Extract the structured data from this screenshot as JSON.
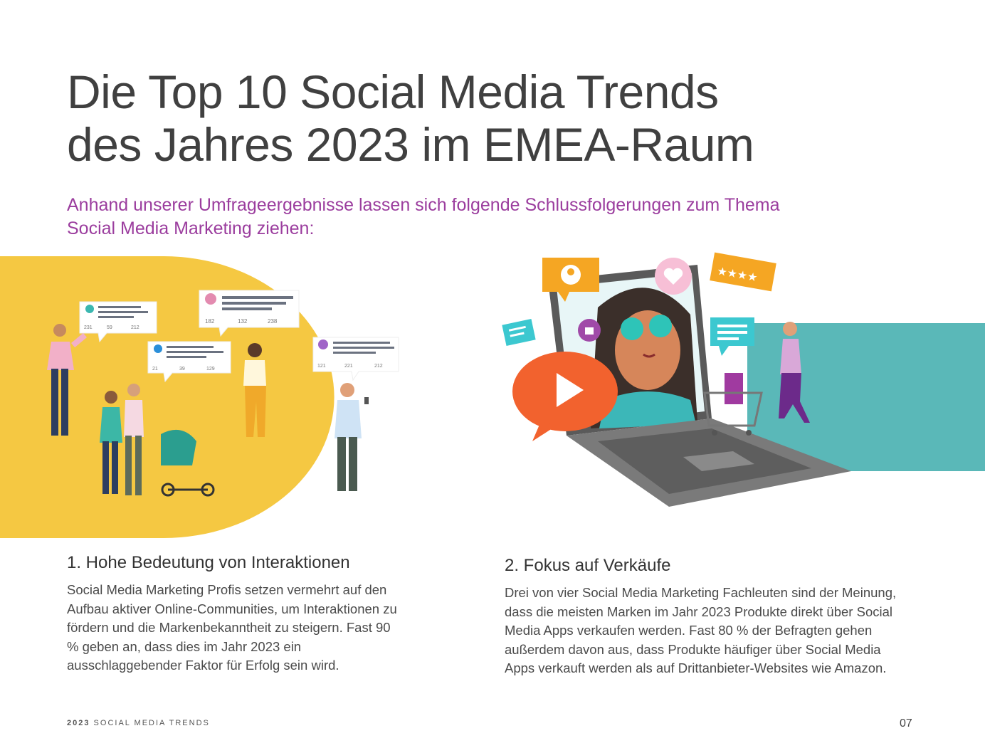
{
  "title": {
    "line1": "Die Top 10 Social Media Trends",
    "line2": "des Jahres 2023 im EMEA-Raum"
  },
  "subtitle": {
    "line1": "Anhand unserer Umfrageergebnisse lassen sich folgende Schlussfolgerungen zum Thema",
    "line2": "Social Media Marketing ziehen:"
  },
  "posts": [
    {
      "comments": "231",
      "shares": "59",
      "likes": "212"
    },
    {
      "comments": "182",
      "shares": "132",
      "likes": "238"
    },
    {
      "comments": "21",
      "shares": "39",
      "likes": "129"
    },
    {
      "comments": "121",
      "shares": "221",
      "likes": "212"
    }
  ],
  "sections": [
    {
      "heading": "1. Hohe Bedeutung von Interaktionen",
      "body": "Social Media Marketing Profis setzen vermehrt auf den Aufbau aktiver Online-Communities, um Interaktionen zu fördern und die Markenbekanntheit zu steigern. Fast 90 % geben an, dass dies im Jahr 2023 ein ausschlaggebender Faktor für Erfolg sein wird."
    },
    {
      "heading": "2. Fokus auf Verkäufe",
      "body": "Drei von vier Social Media Marketing Fachleuten sind der Meinung, dass die meisten Marken im Jahr 2023 Produkte direkt über Social Media Apps verkaufen werden. Fast 80 % der Befragten gehen außerdem davon aus, dass Produkte häufiger über Social Media Apps verkauft werden als auf Drittanbieter-Websites wie Amazon."
    }
  ],
  "footer": {
    "year": "2023",
    "label": "SOCIAL MEDIA TRENDS",
    "page": "07"
  },
  "colors": {
    "title": "#404040",
    "subtitle": "#9b3d9e",
    "yellow": "#f5c842",
    "teal": "#5ab8b8",
    "orange": "#f2622e",
    "badge": "#f5a623"
  }
}
